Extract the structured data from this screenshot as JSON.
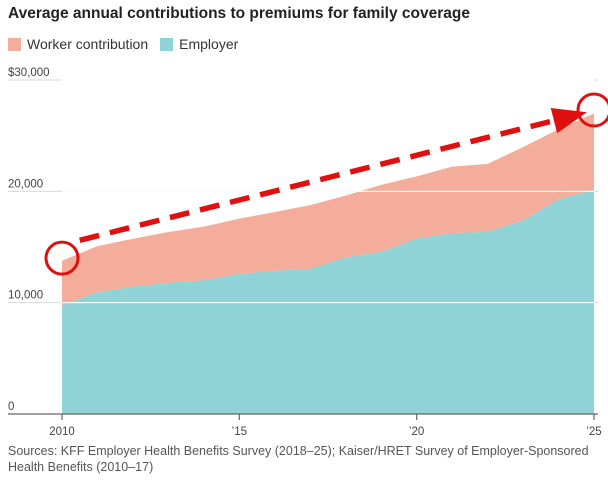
{
  "chart_data": {
    "type": "area",
    "stacked": true,
    "title": "Average annual contributions to premiums for family coverage",
    "x": [
      2010,
      2011,
      2012,
      2013,
      2014,
      2015,
      2016,
      2017,
      2018,
      2019,
      2020,
      2021,
      2022,
      2023,
      2024,
      2025
    ],
    "series": [
      {
        "name": "Employer",
        "color": "#8fd3d6",
        "values": [
          9773,
          10944,
          11429,
          11786,
          12011,
          12591,
          12865,
          13049,
          14069,
          14561,
          15754,
          16253,
          16357,
          17393,
          19276,
          20143
        ]
      },
      {
        "name": "Worker contribution",
        "color": "#f5ad9b",
        "values": [
          3997,
          4129,
          4316,
          4565,
          4823,
          4955,
          5277,
          5714,
          5547,
          6015,
          5588,
          5969,
          6106,
          6575,
          6296,
          6850
        ]
      }
    ],
    "x_ticks": [
      {
        "value": 2010,
        "label": "2010"
      },
      {
        "value": 2015,
        "label": "’15"
      },
      {
        "value": 2020,
        "label": "’20"
      },
      {
        "value": 2025,
        "label": "’25"
      }
    ],
    "y_ticks": [
      {
        "value": 0,
        "label": "0"
      },
      {
        "value": 10000,
        "label": "10,000"
      },
      {
        "value": 20000,
        "label": "20,000"
      },
      {
        "value": 30000,
        "label": "$30,000"
      }
    ],
    "xlim": [
      2010,
      2025
    ],
    "ylim": [
      0,
      30000
    ],
    "grid": true,
    "legend": "top-left",
    "annotations": [
      {
        "type": "circle",
        "x": 2010,
        "y": 14000,
        "color": "#e01010"
      },
      {
        "type": "circle",
        "x": 2025,
        "y": 27300,
        "color": "#e01010"
      },
      {
        "type": "dashed-arrow",
        "from": [
          2010.5,
          15600
        ],
        "to": [
          2024.8,
          27100
        ],
        "color": "#e01010"
      }
    ]
  },
  "legend_items": {
    "worker": "Worker contribution",
    "employer": "Employer"
  },
  "source_text": "Sources: KFF Employer Health Benefits Survey (2018–25); Kaiser/HRET Survey of Employer-Sponsored Health Benefits (2010–17)"
}
